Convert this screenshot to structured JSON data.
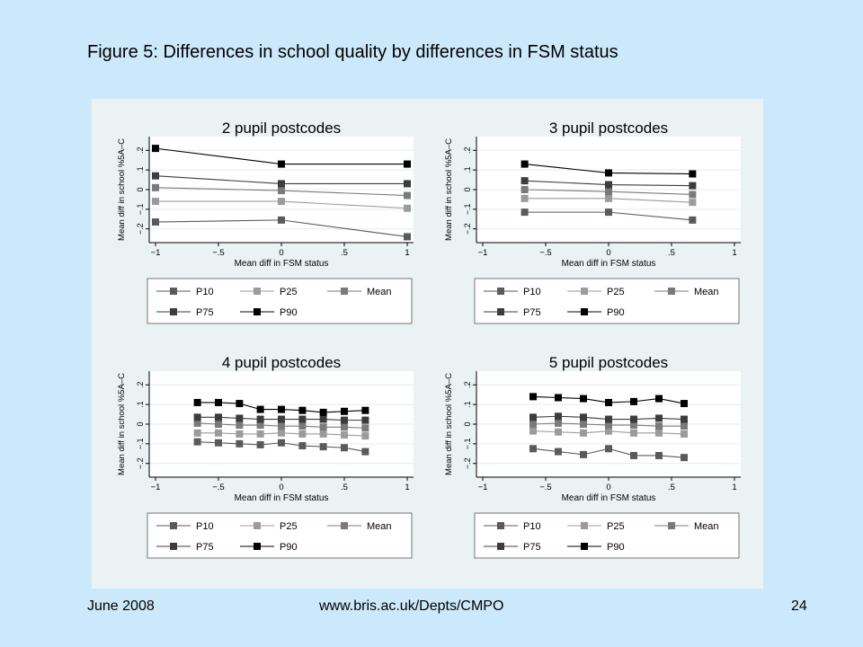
{
  "slide": {
    "title": "Figure 5: Differences in school quality by differences in FSM status",
    "footer_date": "June 2008",
    "footer_url": "www.bris.ac.uk/Depts/CMPO",
    "page_number": "24"
  },
  "colors": {
    "slide_background": "#cce9fb",
    "figure_background": "#eaf2f3",
    "plot_background": "#ffffff",
    "P10": "#5a5a5a",
    "P25": "#9b9b9b",
    "Mean": "#7a7a7a",
    "P75": "#3c3c3c",
    "P90": "#000000"
  },
  "chart_data": [
    {
      "type": "line",
      "title": "2 pupil postcodes",
      "xlabel": "Mean diff in FSM status",
      "ylabel": "Mean diff in school %5A–C",
      "xlim": [
        -1.05,
        1.05
      ],
      "ylim": [
        -0.27,
        0.27
      ],
      "xticks": [
        -1,
        -0.5,
        0,
        0.5,
        1
      ],
      "xtick_labels": [
        "−1",
        "−.5",
        "0",
        ".5",
        "1"
      ],
      "yticks": [
        -0.2,
        -0.1,
        0,
        0.1,
        0.2
      ],
      "ytick_labels": [
        "−.2",
        "−.1",
        "0",
        ".1",
        ".2"
      ],
      "grid": "horizontal",
      "legend_position": "bottom",
      "x": [
        -1,
        0,
        1
      ],
      "series": [
        {
          "name": "P10",
          "values": [
            -0.165,
            -0.155,
            -0.24
          ]
        },
        {
          "name": "P25",
          "values": [
            -0.06,
            -0.06,
            -0.095
          ]
        },
        {
          "name": "Mean",
          "values": [
            0.01,
            -0.005,
            -0.03
          ]
        },
        {
          "name": "P75",
          "values": [
            0.07,
            0.03,
            0.03
          ]
        },
        {
          "name": "P90",
          "values": [
            0.21,
            0.13,
            0.13
          ]
        }
      ]
    },
    {
      "type": "line",
      "title": "3 pupil postcodes",
      "xlabel": "Mean diff in FSM status",
      "ylabel": "Mean diff in school %5A–C",
      "xlim": [
        -1.05,
        1.05
      ],
      "ylim": [
        -0.27,
        0.27
      ],
      "xticks": [
        -1,
        -0.5,
        0,
        0.5,
        1
      ],
      "xtick_labels": [
        "−1",
        "−.5",
        "0",
        ".5",
        "1"
      ],
      "yticks": [
        -0.2,
        -0.1,
        0,
        0.1,
        0.2
      ],
      "ytick_labels": [
        "−.2",
        "−.1",
        "0",
        ".1",
        ".2"
      ],
      "grid": "horizontal",
      "legend_position": "bottom",
      "x": [
        -0.667,
        0,
        0.667
      ],
      "series": [
        {
          "name": "P10",
          "values": [
            -0.115,
            -0.115,
            -0.155
          ]
        },
        {
          "name": "P25",
          "values": [
            -0.045,
            -0.045,
            -0.065
          ]
        },
        {
          "name": "Mean",
          "values": [
            0.0,
            -0.01,
            -0.025
          ]
        },
        {
          "name": "P75",
          "values": [
            0.045,
            0.025,
            0.02
          ]
        },
        {
          "name": "P90",
          "values": [
            0.13,
            0.085,
            0.08
          ]
        }
      ]
    },
    {
      "type": "line",
      "title": "4 pupil postcodes",
      "xlabel": "Mean diff in FSM status",
      "ylabel": "Mean diff in school %5A–C",
      "xlim": [
        -1.05,
        1.05
      ],
      "ylim": [
        -0.27,
        0.27
      ],
      "xticks": [
        -1,
        -0.5,
        0,
        0.5,
        1
      ],
      "xtick_labels": [
        "−1",
        "−.5",
        "0",
        ".5",
        "1"
      ],
      "yticks": [
        -0.2,
        -0.1,
        0,
        0.1,
        0.2
      ],
      "ytick_labels": [
        "−.2",
        "−.1",
        "0",
        ".1",
        ".2"
      ],
      "grid": "horizontal",
      "legend_position": "bottom",
      "x": [
        -0.667,
        -0.5,
        -0.333,
        -0.167,
        0,
        0.167,
        0.333,
        0.5,
        0.667
      ],
      "series": [
        {
          "name": "P10",
          "values": [
            -0.09,
            -0.095,
            -0.1,
            -0.105,
            -0.095,
            -0.11,
            -0.115,
            -0.12,
            -0.14
          ]
        },
        {
          "name": "P25",
          "values": [
            -0.045,
            -0.045,
            -0.05,
            -0.05,
            -0.045,
            -0.05,
            -0.05,
            -0.055,
            -0.06
          ]
        },
        {
          "name": "Mean",
          "values": [
            0.005,
            0.0,
            -0.005,
            -0.005,
            -0.01,
            -0.01,
            -0.015,
            -0.015,
            -0.02
          ]
        },
        {
          "name": "P75",
          "values": [
            0.035,
            0.035,
            0.03,
            0.025,
            0.025,
            0.025,
            0.025,
            0.02,
            0.02
          ]
        },
        {
          "name": "P90",
          "values": [
            0.11,
            0.11,
            0.105,
            0.075,
            0.075,
            0.07,
            0.06,
            0.065,
            0.07
          ]
        }
      ]
    },
    {
      "type": "line",
      "title": "5 pupil postcodes",
      "xlabel": "Mean diff in FSM status",
      "ylabel": "Mean diff in school %5A–C",
      "xlim": [
        -1.05,
        1.05
      ],
      "ylim": [
        -0.27,
        0.27
      ],
      "xticks": [
        -1,
        -0.5,
        0,
        0.5,
        1
      ],
      "xtick_labels": [
        "−1",
        "−.5",
        "0",
        ".5",
        "1"
      ],
      "yticks": [
        -0.2,
        -0.1,
        0,
        0.1,
        0.2
      ],
      "ytick_labels": [
        "−.2",
        "−.1",
        "0",
        ".1",
        ".2"
      ],
      "grid": "horizontal",
      "legend_position": "bottom",
      "x": [
        -0.6,
        -0.4,
        -0.2,
        0,
        0.2,
        0.4,
        0.6
      ],
      "series": [
        {
          "name": "P10",
          "values": [
            -0.125,
            -0.14,
            -0.155,
            -0.125,
            -0.16,
            -0.16,
            -0.17
          ]
        },
        {
          "name": "P25",
          "values": [
            -0.035,
            -0.04,
            -0.045,
            -0.035,
            -0.045,
            -0.045,
            -0.05
          ]
        },
        {
          "name": "Mean",
          "values": [
            0.0,
            0.005,
            0.0,
            -0.005,
            -0.005,
            -0.01,
            -0.01
          ]
        },
        {
          "name": "P75",
          "values": [
            0.035,
            0.04,
            0.035,
            0.025,
            0.025,
            0.03,
            0.025
          ]
        },
        {
          "name": "P90",
          "values": [
            0.14,
            0.135,
            0.13,
            0.11,
            0.115,
            0.13,
            0.105
          ]
        }
      ]
    }
  ]
}
